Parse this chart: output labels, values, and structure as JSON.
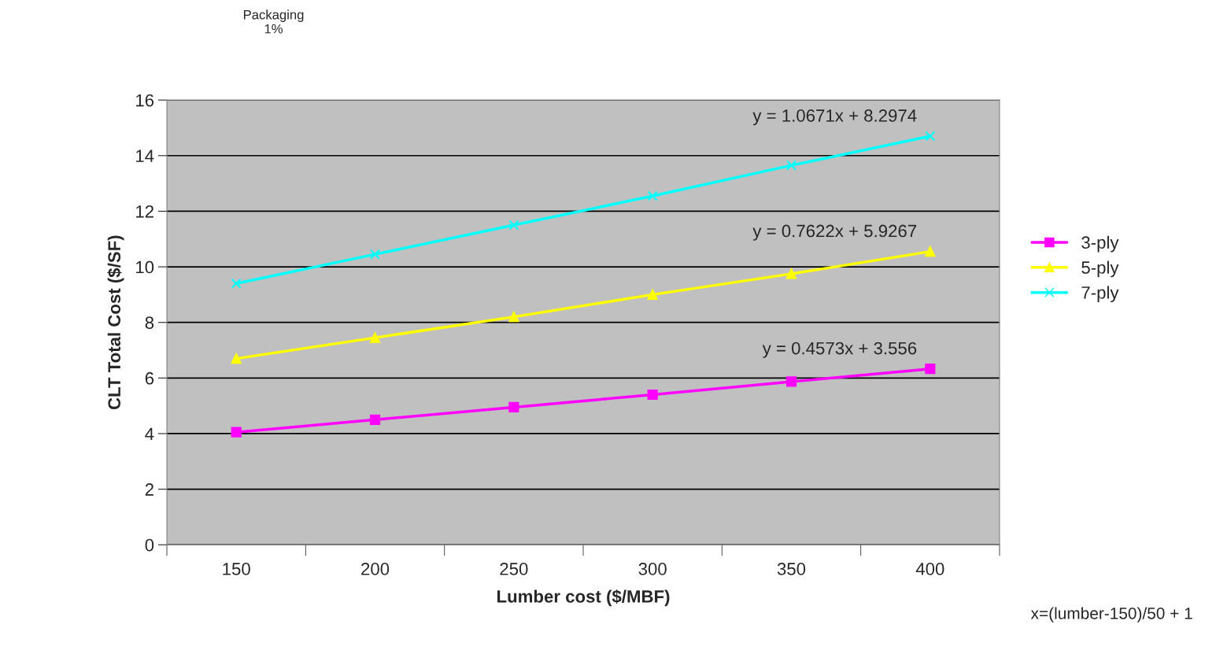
{
  "chart_data": {
    "type": "line",
    "xlabel": "Lumber cost ($/MBF)",
    "ylabel": "CLT Total Cost ($/SF)",
    "categories": [
      "150",
      "200",
      "250",
      "300",
      "350",
      "400"
    ],
    "series": [
      {
        "name": "3-ply",
        "color": "#ff00ff",
        "marker": "square",
        "values": [
          4.05,
          4.5,
          4.95,
          5.4,
          5.87,
          6.33
        ]
      },
      {
        "name": "5-ply",
        "color": "#ffff00",
        "marker": "triangle",
        "values": [
          6.7,
          7.45,
          8.2,
          9.0,
          9.75,
          10.55
        ]
      },
      {
        "name": "7-ply",
        "color": "#00ffff",
        "marker": "cross",
        "values": [
          9.4,
          10.45,
          11.5,
          12.55,
          13.65,
          14.7
        ]
      }
    ],
    "ylim": [
      0,
      16
    ],
    "yticks": [
      0,
      2,
      4,
      6,
      8,
      10,
      12,
      14,
      16
    ],
    "grid": "y",
    "legend": "right",
    "line_style": "solid",
    "annotations": [
      {
        "text": "y = 0.4573x + 3.556",
        "x": "400",
        "y": 6.33
      },
      {
        "text": "y = 0.7622x + 5.9267",
        "x": "400",
        "y": 10.55
      },
      {
        "text": "y = 1.0671x + 8.2974",
        "x": "400",
        "y": 14.7
      },
      "x=(lumber-150)/50 + 1",
      "Packaging\n1%"
    ]
  }
}
